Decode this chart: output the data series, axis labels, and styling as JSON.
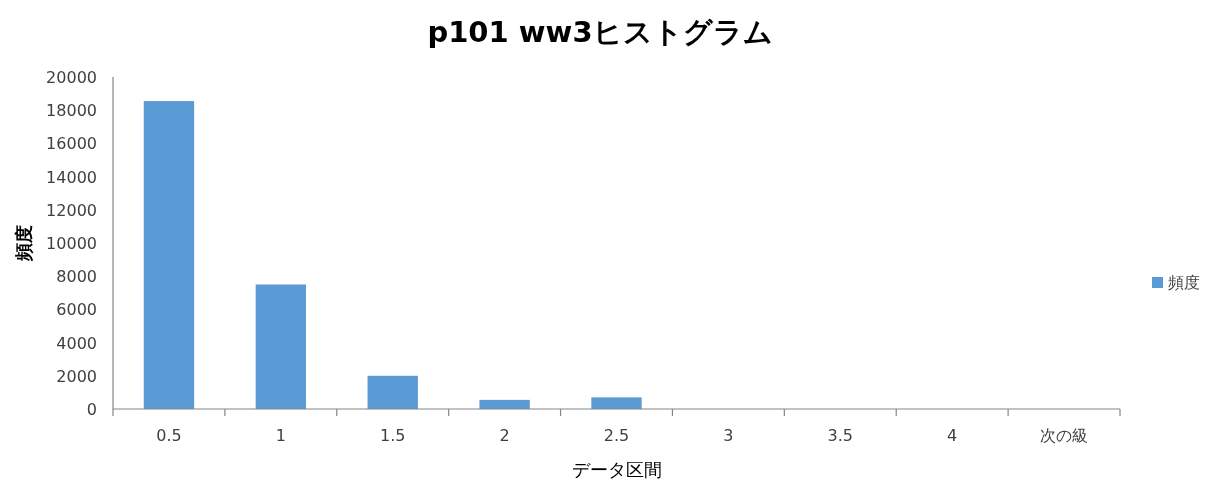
{
  "chart_data": {
    "type": "bar",
    "title": "p101 ww3ヒストグラム",
    "xlabel": "データ区間",
    "ylabel": "頻度",
    "categories": [
      "0.5",
      "1",
      "1.5",
      "2",
      "2.5",
      "3",
      "3.5",
      "4",
      "次の級"
    ],
    "series": [
      {
        "name": "頻度",
        "color": "#5b9bd5",
        "values": [
          18550,
          7500,
          2000,
          550,
          700,
          0,
          0,
          0,
          0
        ]
      }
    ],
    "ylim": [
      0,
      20000
    ],
    "yticks": [
      0,
      2000,
      4000,
      6000,
      8000,
      10000,
      12000,
      14000,
      16000,
      18000,
      20000
    ],
    "grid": false,
    "legend": "right"
  }
}
